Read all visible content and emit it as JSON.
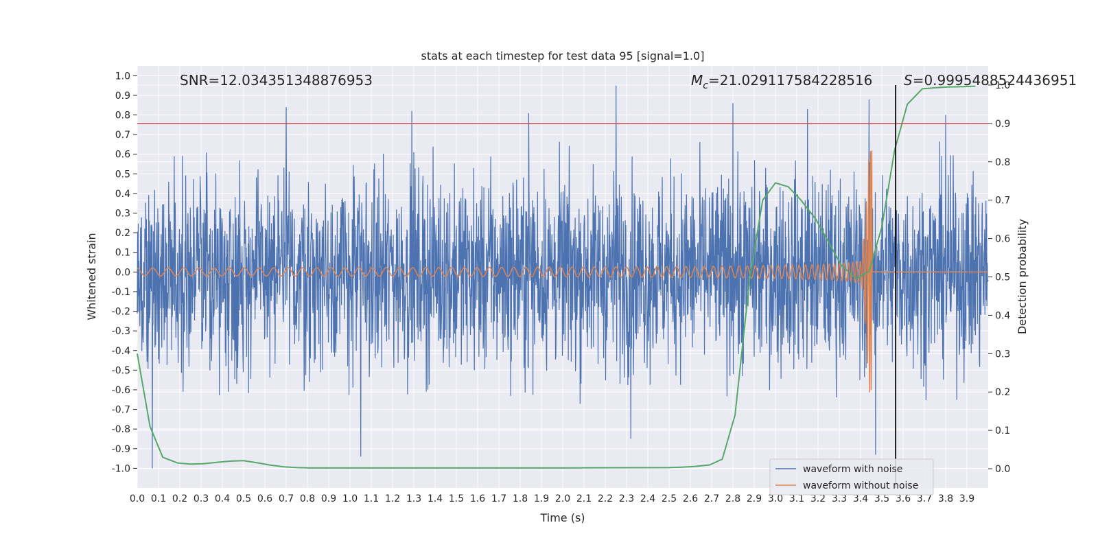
{
  "chart_data": {
    "type": "line",
    "title": "stats at each timestep for test data 95 [signal=1.0]",
    "xlabel": "Time (s)",
    "ylabel": "Whitened strain",
    "y2label": "Detection probability",
    "xlim": [
      0.0,
      4.0
    ],
    "ylim": [
      -1.1,
      1.05
    ],
    "y2lim": [
      -0.05,
      1.05
    ],
    "x_ticks": [
      "0.0",
      "0.1",
      "0.2",
      "0.3",
      "0.4",
      "0.5",
      "0.6",
      "0.7",
      "0.8",
      "0.9",
      "1.0",
      "1.1",
      "1.2",
      "1.3",
      "1.4",
      "1.5",
      "1.6",
      "1.7",
      "1.8",
      "1.9",
      "2.0",
      "2.1",
      "2.2",
      "2.3",
      "2.4",
      "2.5",
      "2.6",
      "2.7",
      "2.8",
      "2.9",
      "3.0",
      "3.1",
      "3.2",
      "3.3",
      "3.4",
      "3.5",
      "3.6",
      "3.7",
      "3.8",
      "3.9"
    ],
    "y_ticks": [
      "1.0",
      "0.9",
      "0.8",
      "0.7",
      "0.6",
      "0.5",
      "0.4",
      "0.3",
      "0.2",
      "0.1",
      "0.0",
      "-0.1",
      "-0.2",
      "-0.3",
      "-0.4",
      "-0.5",
      "-0.6",
      "-0.7",
      "-0.8",
      "-0.9",
      "-1.0"
    ],
    "y2_ticks": [
      "1.0",
      "0.9",
      "0.8",
      "0.7",
      "0.6",
      "0.5",
      "0.4",
      "0.3",
      "0.2",
      "0.1",
      "0.0"
    ],
    "grid": true,
    "legend": "lower-right",
    "annotations": {
      "snr": "SNR=12.034351348876953",
      "mc_symbol": "M",
      "mc_sub": "c",
      "mc_value": "=21.029117584228516",
      "s_symbol": "S",
      "s_value": "=0.9995488524436951"
    },
    "threshold_y2": 0.9,
    "vline_x": 3.565,
    "series": [
      {
        "name": "waveform with noise",
        "color": "#4c72b0",
        "axis": "left",
        "description_values": "dense noise, amplitude roughly -1.0 to 0.95",
        "peaks": [
          [
            0.07,
            -1.0
          ],
          [
            0.7,
            0.84
          ],
          [
            1.05,
            -0.94
          ],
          [
            1.29,
            0.82
          ],
          [
            1.84,
            0.81
          ],
          [
            2.25,
            0.95
          ],
          [
            2.32,
            -0.85
          ],
          [
            2.8,
            0.86
          ],
          [
            3.15,
            0.83
          ],
          [
            3.44,
            0.88
          ],
          [
            3.47,
            -0.93
          ],
          [
            3.8,
            0.8
          ]
        ]
      },
      {
        "name": "waveform without noise",
        "color": "#dd8452",
        "axis": "left",
        "chirp": {
          "start_amp": 0.02,
          "merger_time": 3.455,
          "peak_amp": 0.62,
          "trough_amp": -0.6
        }
      },
      {
        "name": "",
        "color": "#55a868",
        "axis": "right",
        "x": [
          0.0,
          0.06,
          0.12,
          0.19,
          0.25,
          0.31,
          0.38,
          0.44,
          0.5,
          0.56,
          0.62,
          0.69,
          0.75,
          0.81,
          0.88,
          1.0,
          1.5,
          2.0,
          2.5,
          2.56,
          2.62,
          2.69,
          2.75,
          2.81,
          2.88,
          2.94,
          3.0,
          3.06,
          3.12,
          3.19,
          3.25,
          3.31,
          3.38,
          3.44,
          3.5,
          3.56,
          3.62,
          3.69,
          3.75,
          3.81,
          3.88,
          3.94
        ],
        "y": [
          0.3,
          0.11,
          0.03,
          0.015,
          0.012,
          0.013,
          0.017,
          0.02,
          0.021,
          0.016,
          0.01,
          0.005,
          0.003,
          0.002,
          0.002,
          0.002,
          0.002,
          0.002,
          0.003,
          0.004,
          0.006,
          0.01,
          0.025,
          0.14,
          0.5,
          0.7,
          0.745,
          0.735,
          0.7,
          0.65,
          0.59,
          0.53,
          0.495,
          0.515,
          0.63,
          0.83,
          0.95,
          0.99,
          0.993,
          0.995,
          0.996,
          0.997
        ]
      }
    ]
  }
}
